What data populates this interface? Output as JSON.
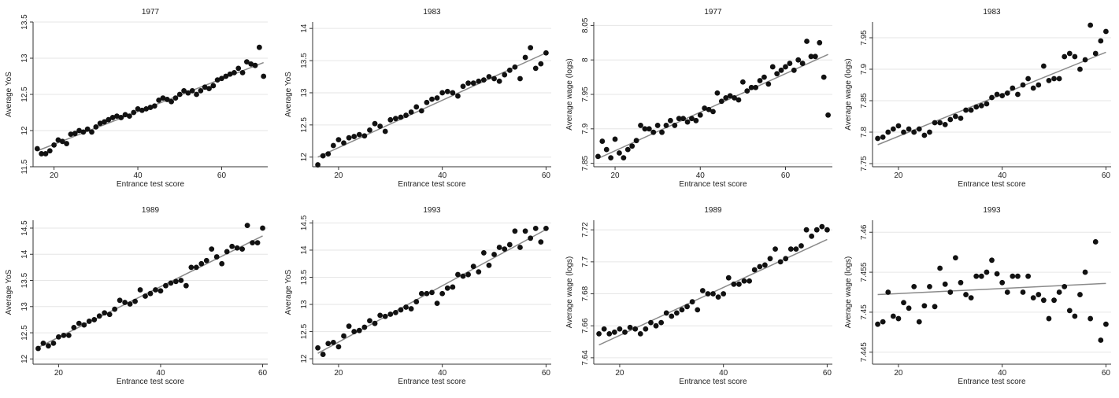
{
  "chart_data": [
    {
      "type": "scatter",
      "title": "1977",
      "xlabel": "Entrance test score",
      "ylabel": "Average YoS",
      "xlim": [
        15,
        71
      ],
      "ylim": [
        11.5,
        13.5
      ],
      "xticks": [
        20,
        40,
        60
      ],
      "xtick_labels": [
        "20",
        "40",
        "60"
      ],
      "yticks": [
        11.5,
        12,
        12.5,
        13,
        13.5
      ],
      "ytick_labels": [
        "11.5",
        "12",
        "12.5",
        "13",
        "13.5"
      ],
      "fit": [
        [
          16,
          11.72
        ],
        [
          70,
          12.94
        ]
      ],
      "x": [
        16,
        17,
        18,
        19,
        20,
        21,
        22,
        23,
        24,
        25,
        26,
        27,
        28,
        29,
        30,
        31,
        32,
        33,
        34,
        35,
        36,
        37,
        38,
        39,
        40,
        41,
        42,
        43,
        44,
        45,
        46,
        47,
        48,
        49,
        50,
        51,
        52,
        53,
        54,
        55,
        56,
        57,
        58,
        59,
        60,
        61,
        62,
        63,
        64,
        65,
        66,
        67,
        68,
        69,
        70
      ],
      "y": [
        11.75,
        11.68,
        11.68,
        11.72,
        11.8,
        11.87,
        11.85,
        11.82,
        11.95,
        11.96,
        12.0,
        11.98,
        12.02,
        11.98,
        12.05,
        12.1,
        12.12,
        12.15,
        12.18,
        12.2,
        12.18,
        12.22,
        12.2,
        12.25,
        12.3,
        12.28,
        12.3,
        12.32,
        12.34,
        12.42,
        12.45,
        12.43,
        12.4,
        12.45,
        12.5,
        12.55,
        12.52,
        12.55,
        12.5,
        12.55,
        12.6,
        12.58,
        12.62,
        12.7,
        12.72,
        12.75,
        12.78,
        12.8,
        12.86,
        12.8,
        12.95,
        12.92,
        12.9,
        13.15,
        12.75
      ],
      "grid": true,
      "legend": "none"
    },
    {
      "type": "scatter",
      "title": "1983",
      "xlabel": "Entrance test score",
      "ylabel": "Average YoS",
      "xlim": [
        15,
        61
      ],
      "ylim": [
        11.85,
        14.1
      ],
      "xticks": [
        20,
        40,
        60
      ],
      "xtick_labels": [
        "20",
        "40",
        "60"
      ],
      "yticks": [
        12,
        12.5,
        13,
        13.5,
        14
      ],
      "ytick_labels": [
        "12",
        "12.5",
        "13",
        "13.5",
        "14"
      ],
      "fit": [
        [
          16,
          12.0
        ],
        [
          60,
          13.62
        ]
      ],
      "x": [
        16,
        17,
        18,
        19,
        20,
        21,
        22,
        23,
        24,
        25,
        26,
        27,
        28,
        29,
        30,
        31,
        32,
        33,
        34,
        35,
        36,
        37,
        38,
        39,
        40,
        41,
        42,
        43,
        44,
        45,
        46,
        47,
        48,
        49,
        50,
        51,
        52,
        53,
        54,
        55,
        56,
        57,
        58,
        59,
        60
      ],
      "y": [
        11.88,
        12.02,
        12.05,
        12.18,
        12.27,
        12.22,
        12.3,
        12.32,
        12.35,
        12.33,
        12.42,
        12.52,
        12.48,
        12.4,
        12.58,
        12.6,
        12.62,
        12.65,
        12.7,
        12.78,
        12.72,
        12.85,
        12.9,
        12.92,
        13.0,
        13.02,
        13.0,
        12.95,
        13.1,
        13.15,
        13.15,
        13.18,
        13.2,
        13.25,
        13.22,
        13.18,
        13.28,
        13.35,
        13.4,
        13.22,
        13.55,
        13.7,
        13.38,
        13.45,
        13.62
      ],
      "grid": true,
      "legend": "none"
    },
    {
      "type": "scatter",
      "title": "1977",
      "xlabel": "Entrance test score",
      "ylabel": "Average wage (logs)",
      "xlim": [
        15,
        71
      ],
      "ylim": [
        7.845,
        8.055
      ],
      "xticks": [
        20,
        40,
        60
      ],
      "xtick_labels": [
        "20",
        "40",
        "60"
      ],
      "yticks": [
        7.85,
        7.9,
        7.95,
        8.0,
        8.05
      ],
      "ytick_labels": [
        "7.85",
        "7.9",
        "7.95",
        "8",
        "8.05"
      ],
      "fit": [
        [
          16,
          7.857
        ],
        [
          70,
          8.008
        ]
      ],
      "x": [
        16,
        17,
        18,
        19,
        20,
        21,
        22,
        23,
        24,
        25,
        26,
        27,
        28,
        29,
        30,
        31,
        32,
        33,
        34,
        35,
        36,
        37,
        38,
        39,
        40,
        41,
        42,
        43,
        44,
        45,
        46,
        47,
        48,
        49,
        50,
        51,
        52,
        53,
        54,
        55,
        56,
        57,
        58,
        59,
        60,
        61,
        62,
        63,
        64,
        65,
        66,
        67,
        68,
        69,
        70
      ],
      "y": [
        7.86,
        7.882,
        7.87,
        7.858,
        7.885,
        7.865,
        7.858,
        7.87,
        7.875,
        7.883,
        7.905,
        7.9,
        7.9,
        7.895,
        7.905,
        7.895,
        7.905,
        7.912,
        7.905,
        7.915,
        7.915,
        7.91,
        7.915,
        7.912,
        7.92,
        7.93,
        7.928,
        7.925,
        7.952,
        7.94,
        7.945,
        7.948,
        7.945,
        7.942,
        7.968,
        7.955,
        7.96,
        7.96,
        7.97,
        7.975,
        7.965,
        7.99,
        7.98,
        7.985,
        7.99,
        7.995,
        7.985,
        8.0,
        7.995,
        8.027,
        8.005,
        8.005,
        8.025,
        7.975,
        7.92
      ],
      "grid": true,
      "legend": "none"
    },
    {
      "type": "scatter",
      "title": "1983",
      "xlabel": "Entrance test score",
      "ylabel": "Average wage (logs)",
      "xlim": [
        15,
        61
      ],
      "ylim": [
        7.745,
        7.975
      ],
      "xticks": [
        20,
        40,
        60
      ],
      "xtick_labels": [
        "20",
        "40",
        "60"
      ],
      "yticks": [
        7.75,
        7.8,
        7.85,
        7.9,
        7.95
      ],
      "ytick_labels": [
        "7.75",
        "7.8",
        "7.85",
        "7.9",
        "7.95"
      ],
      "fit": [
        [
          16,
          7.78
        ],
        [
          60,
          7.927
        ]
      ],
      "x": [
        16,
        17,
        18,
        19,
        20,
        21,
        22,
        23,
        24,
        25,
        26,
        27,
        28,
        29,
        30,
        31,
        32,
        33,
        34,
        35,
        36,
        37,
        38,
        39,
        40,
        41,
        42,
        43,
        44,
        45,
        46,
        47,
        48,
        49,
        50,
        51,
        52,
        53,
        54,
        55,
        56,
        57,
        58,
        59,
        60
      ],
      "y": [
        7.79,
        7.792,
        7.8,
        7.805,
        7.81,
        7.8,
        7.805,
        7.8,
        7.805,
        7.795,
        7.8,
        7.815,
        7.815,
        7.812,
        7.82,
        7.825,
        7.822,
        7.835,
        7.835,
        7.84,
        7.842,
        7.845,
        7.855,
        7.86,
        7.858,
        7.862,
        7.87,
        7.86,
        7.875,
        7.885,
        7.87,
        7.875,
        7.905,
        7.882,
        7.885,
        7.885,
        7.92,
        7.925,
        7.92,
        7.9,
        7.915,
        7.97,
        7.925,
        7.945,
        7.96
      ],
      "grid": true,
      "legend": "none"
    },
    {
      "type": "scatter",
      "title": "1989",
      "xlabel": "Entrance test score",
      "ylabel": "Average YoS",
      "xlim": [
        15,
        61
      ],
      "ylim": [
        11.9,
        14.65
      ],
      "xticks": [
        20,
        40,
        60
      ],
      "xtick_labels": [
        "20",
        "40",
        "60"
      ],
      "yticks": [
        12,
        12.5,
        13,
        13.5,
        14,
        14.5
      ],
      "ytick_labels": [
        "12",
        "12.5",
        "13",
        "13.5",
        "14",
        "14.5"
      ],
      "fit": [
        [
          16,
          12.22
        ],
        [
          60,
          14.35
        ]
      ],
      "x": [
        16,
        17,
        18,
        19,
        20,
        21,
        22,
        23,
        24,
        25,
        26,
        27,
        28,
        29,
        30,
        31,
        32,
        33,
        34,
        35,
        36,
        37,
        38,
        39,
        40,
        41,
        42,
        43,
        44,
        45,
        46,
        47,
        48,
        49,
        50,
        51,
        52,
        53,
        54,
        55,
        56,
        57,
        58,
        59,
        60
      ],
      "y": [
        12.2,
        12.3,
        12.25,
        12.3,
        12.42,
        12.45,
        12.45,
        12.6,
        12.68,
        12.65,
        12.72,
        12.75,
        12.82,
        12.88,
        12.85,
        12.95,
        13.12,
        13.08,
        13.05,
        13.1,
        13.32,
        13.2,
        13.25,
        13.32,
        13.3,
        13.4,
        13.45,
        13.48,
        13.5,
        13.4,
        13.75,
        13.75,
        13.82,
        13.88,
        14.1,
        13.95,
        13.82,
        14.05,
        14.15,
        14.12,
        14.1,
        14.55,
        14.22,
        14.22,
        14.5
      ],
      "grid": true,
      "legend": "none"
    },
    {
      "type": "scatter",
      "title": "1993",
      "xlabel": "Entrance test score",
      "ylabel": "Average YoS",
      "xlim": [
        15,
        61
      ],
      "ylim": [
        11.9,
        14.55
      ],
      "xticks": [
        20,
        40,
        60
      ],
      "xtick_labels": [
        "20",
        "40",
        "60"
      ],
      "yticks": [
        12,
        12.5,
        13,
        13.5,
        14,
        14.5
      ],
      "ytick_labels": [
        "12",
        "12.5",
        "13",
        "13.5",
        "14",
        "14.5"
      ],
      "fit": [
        [
          16,
          12.1
        ],
        [
          60,
          14.38
        ]
      ],
      "x": [
        16,
        17,
        18,
        19,
        20,
        21,
        22,
        23,
        24,
        25,
        26,
        27,
        28,
        29,
        30,
        31,
        32,
        33,
        34,
        35,
        36,
        37,
        38,
        39,
        40,
        41,
        42,
        43,
        44,
        45,
        46,
        47,
        48,
        49,
        50,
        51,
        52,
        53,
        54,
        55,
        56,
        57,
        58,
        59,
        60
      ],
      "y": [
        12.2,
        12.08,
        12.28,
        12.3,
        12.22,
        12.42,
        12.6,
        12.5,
        12.52,
        12.58,
        12.7,
        12.65,
        12.8,
        12.78,
        12.82,
        12.85,
        12.9,
        12.95,
        12.92,
        13.05,
        13.2,
        13.2,
        13.22,
        13.02,
        13.2,
        13.3,
        13.32,
        13.55,
        13.52,
        13.55,
        13.7,
        13.6,
        13.95,
        13.72,
        13.92,
        14.05,
        14.02,
        14.1,
        14.35,
        14.05,
        14.35,
        14.22,
        14.4,
        14.15,
        14.4
      ],
      "grid": true,
      "legend": "none"
    },
    {
      "type": "scatter",
      "title": "1989",
      "xlabel": "Entrance test score",
      "ylabel": "Average wage (logs)",
      "xlim": [
        15,
        61
      ],
      "ylim": [
        7.636,
        7.726
      ],
      "xticks": [
        20,
        40,
        60
      ],
      "xtick_labels": [
        "20",
        "40",
        "60"
      ],
      "yticks": [
        7.64,
        7.66,
        7.68,
        7.7,
        7.72
      ],
      "ytick_labels": [
        "7.64",
        "7.66",
        "7.68",
        "7.7",
        "7.72"
      ],
      "fit": [
        [
          16,
          7.648
        ],
        [
          60,
          7.714
        ]
      ],
      "x": [
        16,
        17,
        18,
        19,
        20,
        21,
        22,
        23,
        24,
        25,
        26,
        27,
        28,
        29,
        30,
        31,
        32,
        33,
        34,
        35,
        36,
        37,
        38,
        39,
        40,
        41,
        42,
        43,
        44,
        45,
        46,
        47,
        48,
        49,
        50,
        51,
        52,
        53,
        54,
        55,
        56,
        57,
        58,
        59,
        60
      ],
      "y": [
        7.655,
        7.658,
        7.655,
        7.656,
        7.658,
        7.656,
        7.659,
        7.658,
        7.655,
        7.658,
        7.662,
        7.66,
        7.662,
        7.668,
        7.666,
        7.668,
        7.67,
        7.672,
        7.675,
        7.67,
        7.682,
        7.68,
        7.68,
        7.678,
        7.68,
        7.69,
        7.686,
        7.686,
        7.688,
        7.688,
        7.695,
        7.697,
        7.698,
        7.702,
        7.708,
        7.7,
        7.702,
        7.708,
        7.708,
        7.71,
        7.72,
        7.716,
        7.72,
        7.722,
        7.72
      ],
      "grid": true,
      "legend": "none"
    },
    {
      "type": "scatter",
      "title": "1993",
      "xlabel": "Entrance test score",
      "ylabel": "Average wage (logs)",
      "xlim": [
        15,
        61
      ],
      "ylim": [
        7.4435,
        7.4615
      ],
      "xticks": [
        20,
        40,
        60
      ],
      "xtick_labels": [
        "20",
        "40",
        "60"
      ],
      "yticks": [
        7.445,
        7.45,
        7.455,
        7.46
      ],
      "ytick_labels": [
        "7.445",
        "7.45",
        "7.455",
        "7.46"
      ],
      "fit": [
        [
          16,
          7.4522
        ],
        [
          60,
          7.4536
        ]
      ],
      "x": [
        16,
        17,
        18,
        19,
        20,
        21,
        22,
        23,
        24,
        25,
        26,
        27,
        28,
        29,
        30,
        31,
        32,
        33,
        34,
        35,
        36,
        37,
        38,
        39,
        40,
        41,
        42,
        43,
        44,
        45,
        46,
        47,
        48,
        49,
        50,
        51,
        52,
        53,
        54,
        55,
        56,
        57,
        58,
        59,
        60
      ],
      "y": [
        7.4485,
        7.4488,
        7.4525,
        7.4495,
        7.4492,
        7.4512,
        7.4505,
        7.4532,
        7.4488,
        7.4508,
        7.4532,
        7.4507,
        7.4555,
        7.4535,
        7.4525,
        7.4568,
        7.4537,
        7.4522,
        7.4518,
        7.4545,
        7.4545,
        7.455,
        7.4565,
        7.4548,
        7.4537,
        7.4525,
        7.4545,
        7.4545,
        7.4525,
        7.4545,
        7.4518,
        7.4522,
        7.4515,
        7.4492,
        7.4515,
        7.4525,
        7.4532,
        7.4502,
        7.4495,
        7.4522,
        7.455,
        7.4492,
        7.4588,
        7.4465,
        7.4485
      ],
      "grid": true,
      "legend": "none"
    }
  ]
}
